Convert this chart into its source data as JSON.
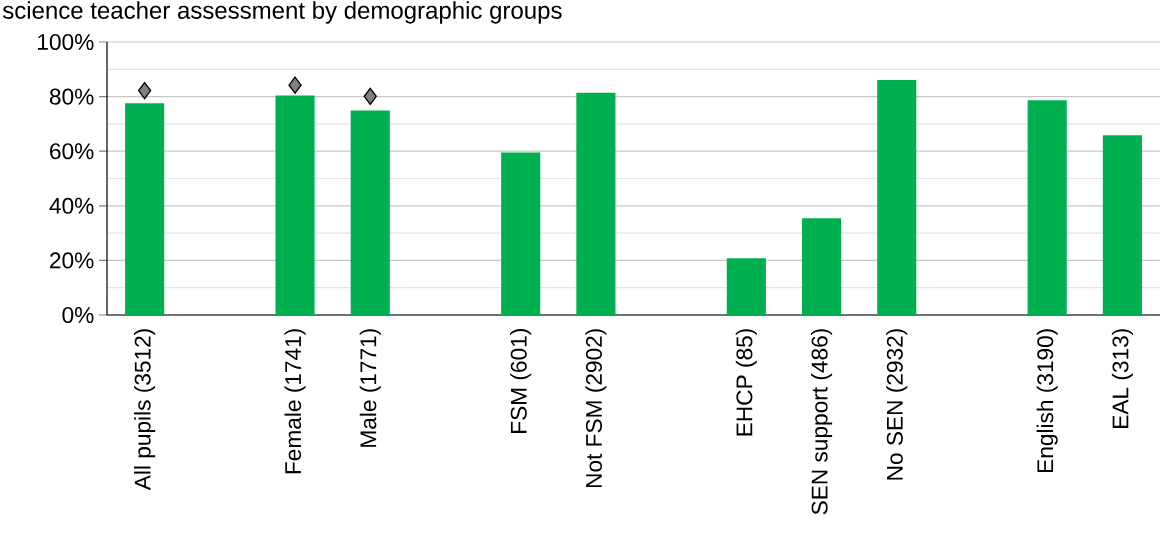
{
  "chart_data": {
    "type": "bar",
    "title": "science teacher assessment by demographic groups",
    "categories": [
      "All pupils (3512)",
      null,
      "Female (1741)",
      "Male (1771)",
      null,
      "FSM (601)",
      "Not FSM (2902)",
      null,
      "EHCP (85)",
      "SEN support (486)",
      "No SEN (2932)",
      null,
      "English (3190)",
      "EAL (313)"
    ],
    "series": [
      {
        "color": "#00b050",
        "values": [
          77.6,
          null,
          80.4,
          74.9,
          null,
          59.5,
          81.4,
          null,
          20.8,
          35.4,
          86.1,
          null,
          78.7,
          65.8
        ]
      },
      {
        "type": "scatter",
        "color": "#808080",
        "marker": "diamond",
        "values": [
          82.2,
          null,
          84.2,
          80.1,
          null,
          null,
          null,
          null,
          null,
          null,
          null,
          null,
          null,
          null
        ]
      }
    ],
    "ylim": [
      0,
      100
    ],
    "yticks": [
      {
        "value": 0,
        "label": "0%"
      },
      {
        "value": 10,
        "label": null
      },
      {
        "value": 20,
        "label": "20%"
      },
      {
        "value": 30,
        "label": null
      },
      {
        "value": 40,
        "label": "40%"
      },
      {
        "value": 50,
        "label": null
      },
      {
        "value": 60,
        "label": "60%"
      },
      {
        "value": 70,
        "label": null
      },
      {
        "value": 80,
        "label": "80%"
      },
      {
        "value": 90,
        "label": null
      },
      {
        "value": 100,
        "label": "100%"
      }
    ],
    "grid": "y"
  }
}
